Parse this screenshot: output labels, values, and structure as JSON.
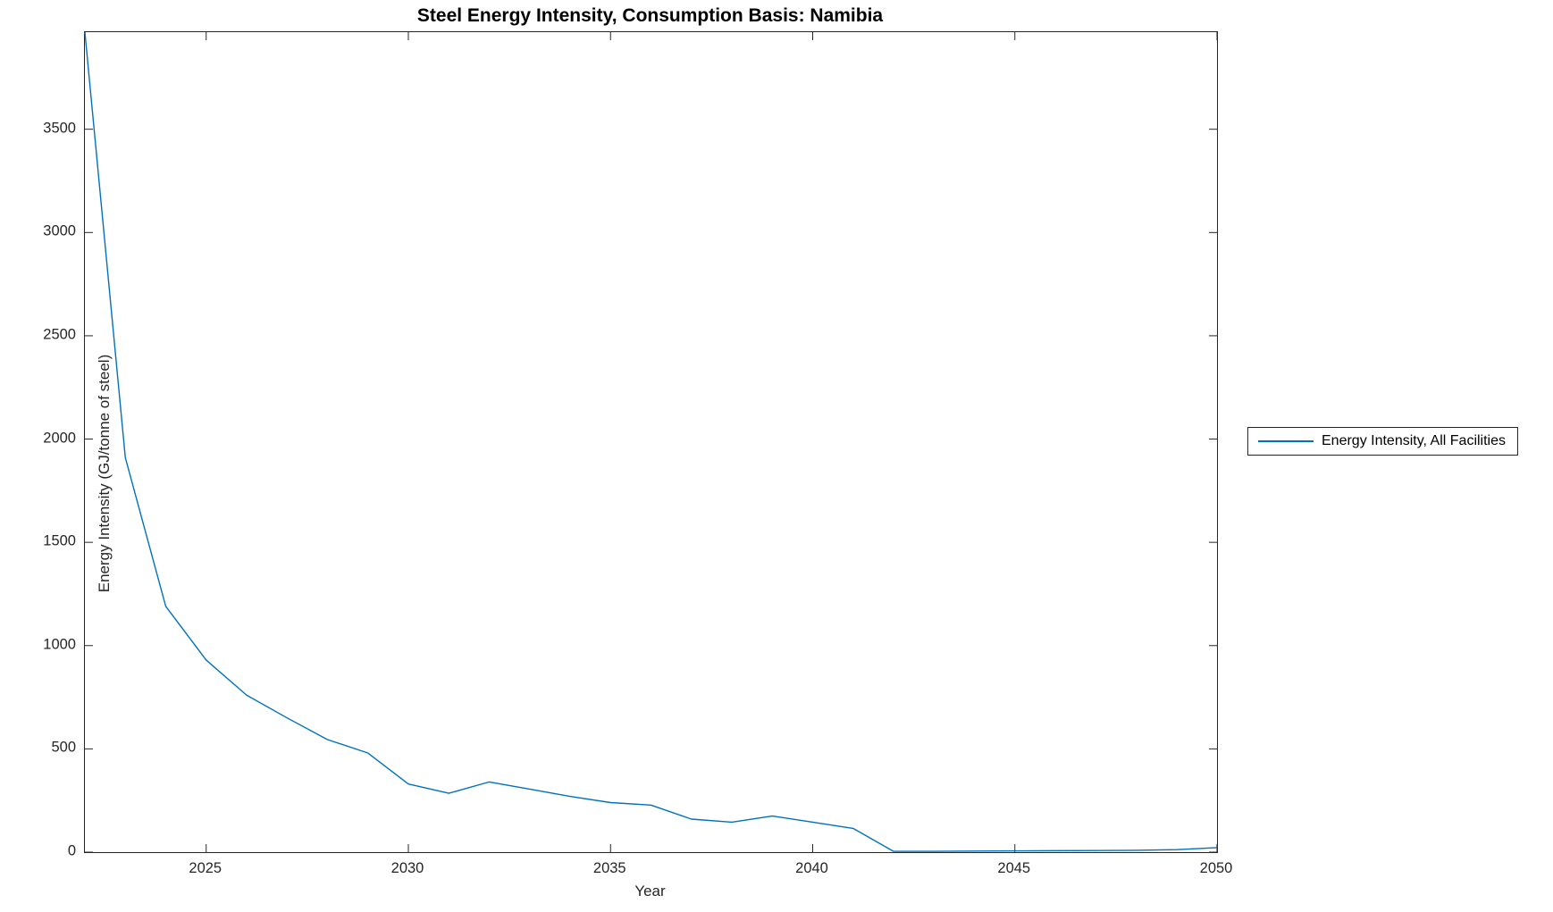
{
  "title": "Steel Energy Intensity, Consumption Basis: Namibia",
  "colors": {
    "line": "#0072BD",
    "axis": "#262626",
    "background": "#ffffff",
    "title_text": "#000000"
  },
  "legend": {
    "position": "outside-right",
    "entries": [
      {
        "label": "Energy Intensity, All Facilities",
        "color": "#0072BD"
      }
    ]
  },
  "chart_data": {
    "type": "line",
    "title": "Steel Energy Intensity, Consumption Basis: Namibia",
    "xlabel": "Year",
    "ylabel": "Energy Intensity (GJ/tonne of steel)",
    "xlim": [
      2022,
      2050
    ],
    "ylim": [
      0,
      3970
    ],
    "xticks": [
      2025,
      2030,
      2035,
      2040,
      2045,
      2050
    ],
    "yticks": [
      0,
      500,
      1000,
      1500,
      2000,
      2500,
      3000,
      3500
    ],
    "grid": false,
    "legend_position": "outside-right",
    "series": [
      {
        "name": "Energy Intensity, All Facilities",
        "color": "#0072BD",
        "x": [
          2022,
          2023,
          2024,
          2025,
          2026,
          2027,
          2028,
          2029,
          2030,
          2031,
          2032,
          2033,
          2034,
          2035,
          2036,
          2037,
          2038,
          2039,
          2040,
          2041,
          2042,
          2043,
          2044,
          2045,
          2046,
          2047,
          2048,
          2049,
          2050
        ],
        "values": [
          3970,
          1910,
          1190,
          930,
          760,
          650,
          545,
          480,
          330,
          285,
          340,
          305,
          270,
          240,
          228,
          160,
          145,
          175,
          145,
          115,
          4,
          4,
          5,
          6,
          7,
          8,
          9,
          12,
          22
        ]
      }
    ]
  }
}
